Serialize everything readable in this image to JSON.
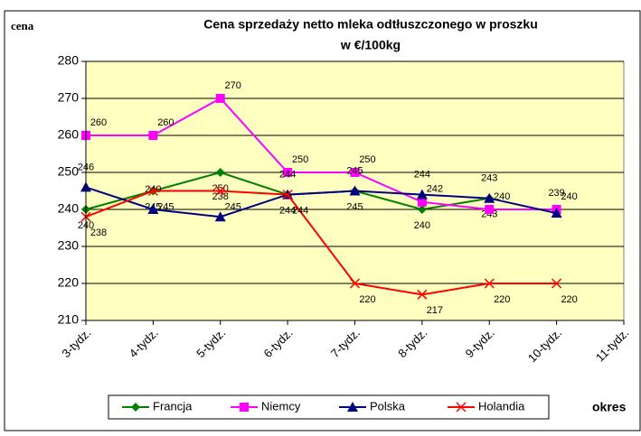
{
  "chart_data": {
    "type": "line",
    "title": "Cena sprzedaży netto mleka odtłuszczonego w proszku",
    "subtitle": "w €/100kg",
    "y_label": "cena",
    "x_label": "okres",
    "categories": [
      "3-tydz.",
      "4-tydz.",
      "5-tydz.",
      "6-tydz.",
      "7-tydz.",
      "8-tydz.",
      "9-tydz.",
      "10-tydz.",
      "11-tydz."
    ],
    "series": [
      {
        "name": "Francja",
        "color": "#008000",
        "marker": "diamond",
        "values": [
          240,
          245,
          250,
          244,
          245,
          240,
          243,
          null,
          null
        ]
      },
      {
        "name": "Niemcy",
        "color": "#ff00ff",
        "marker": "square",
        "values": [
          260,
          260,
          270,
          250,
          250,
          242,
          240,
          240,
          null
        ]
      },
      {
        "name": "Polska",
        "color": "#000080",
        "marker": "triangle",
        "values": [
          246,
          240,
          238,
          244,
          245,
          244,
          243,
          239,
          null
        ]
      },
      {
        "name": "Holandia",
        "color": "#ff0000",
        "marker": "x",
        "values": [
          238,
          245,
          245,
          244,
          220,
          217,
          220,
          220,
          null
        ]
      }
    ],
    "ylim": [
      210,
      280
    ],
    "yticks": [
      210,
      220,
      230,
      240,
      250,
      260,
      270,
      280
    ],
    "grid": true,
    "legend": "bottom"
  }
}
